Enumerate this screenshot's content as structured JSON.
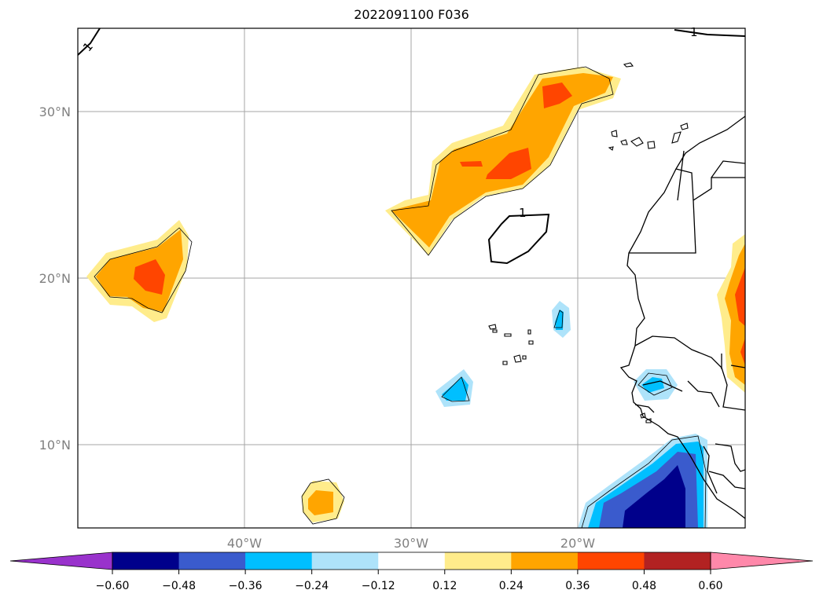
{
  "title": "2022091100 F036",
  "map": {
    "lon_range": [
      -50,
      -10
    ],
    "lat_range": [
      5,
      35
    ],
    "lon_ticks": [
      {
        "value": -40,
        "label": "40°W"
      },
      {
        "value": -30,
        "label": "30°W"
      },
      {
        "value": -20,
        "label": "20°W"
      }
    ],
    "lat_ticks": [
      {
        "value": 30,
        "label": "30°N"
      },
      {
        "value": 20,
        "label": "20°N"
      },
      {
        "value": 10,
        "label": "10°N"
      }
    ],
    "grid": true,
    "coastlines": true,
    "contour_label": "1"
  },
  "colorbar": {
    "levels": [
      "−0.60",
      "−0.48",
      "−0.36",
      "−0.24",
      "−0.12",
      "0.12",
      "0.24",
      "0.36",
      "0.48",
      "0.60"
    ],
    "colors": [
      "#9932cc",
      "#00008b",
      "#3a5bcd",
      "#00bfff",
      "#aee3fa",
      "#ffffff",
      "#ffec8b",
      "#ffa500",
      "#ff4500",
      "#b22222",
      "#ff88aa"
    ],
    "extend": "both"
  },
  "colors": {
    "pos_weak": "#ffec8b",
    "pos_mid": "#ffa500",
    "pos_strong": "#ff4500",
    "neg_weak": "#aee3fa",
    "neg_mid": "#00bfff",
    "neg_strong": "#3a5bcd",
    "neg_max": "#00008b"
  }
}
